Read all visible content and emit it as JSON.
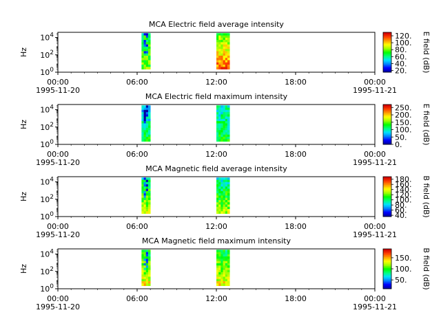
{
  "chart_data": [
    {
      "type": "heatmap",
      "title": "MCA  Electric field average intensity",
      "ylabel": "Hz",
      "y_scale": "log",
      "y_ticks": [
        {
          "base": "10",
          "exp": "0"
        },
        {
          "base": "10",
          "exp": "2"
        },
        {
          "base": "10",
          "exp": "4"
        }
      ],
      "x_ticks": [
        {
          "time": "00:00",
          "date": "1995-11-20"
        },
        {
          "time": "06:00",
          "date": ""
        },
        {
          "time": "12:00",
          "date": ""
        },
        {
          "time": "18:00",
          "date": ""
        },
        {
          "time": "00:00",
          "date": "1995-11-21"
        }
      ],
      "x_range": [
        "1995-11-20T00:00",
        "1995-11-21T00:00"
      ],
      "data_intervals": [
        [
          "1995-11-20T06:20",
          "1995-11-20T07:00"
        ],
        [
          "1995-11-20T12:00",
          "1995-11-20T13:00"
        ]
      ],
      "colorbar": {
        "label": "E field (dB)",
        "ticks": [
          "20.",
          "40.",
          "60.",
          "80.",
          "100.",
          "120."
        ],
        "range": [
          15,
          130
        ]
      }
    },
    {
      "type": "heatmap",
      "title": "MCA  Electric field maximum intensity",
      "ylabel": "Hz",
      "y_scale": "log",
      "y_ticks": [
        {
          "base": "10",
          "exp": "0"
        },
        {
          "base": "10",
          "exp": "2"
        },
        {
          "base": "10",
          "exp": "4"
        }
      ],
      "x_ticks": [
        {
          "time": "00:00",
          "date": "1995-11-20"
        },
        {
          "time": "06:00",
          "date": ""
        },
        {
          "time": "12:00",
          "date": ""
        },
        {
          "time": "18:00",
          "date": ""
        },
        {
          "time": "00:00",
          "date": "1995-11-21"
        }
      ],
      "x_range": [
        "1995-11-20T00:00",
        "1995-11-21T00:00"
      ],
      "data_intervals": [
        [
          "1995-11-20T06:20",
          "1995-11-20T07:00"
        ],
        [
          "1995-11-20T12:00",
          "1995-11-20T13:00"
        ]
      ],
      "colorbar": {
        "label": "E field (dB)",
        "ticks": [
          "0.",
          "50.",
          "100.",
          "150.",
          "200.",
          "250."
        ],
        "range": [
          0,
          270
        ]
      }
    },
    {
      "type": "heatmap",
      "title": "MCA  Magnetic field average intensity",
      "ylabel": "Hz",
      "y_scale": "log",
      "y_ticks": [
        {
          "base": "10",
          "exp": "0"
        },
        {
          "base": "10",
          "exp": "2"
        },
        {
          "base": "10",
          "exp": "4"
        }
      ],
      "x_ticks": [
        {
          "time": "00:00",
          "date": "1995-11-20"
        },
        {
          "time": "06:00",
          "date": ""
        },
        {
          "time": "12:00",
          "date": ""
        },
        {
          "time": "18:00",
          "date": ""
        },
        {
          "time": "00:00",
          "date": "1995-11-21"
        }
      ],
      "x_range": [
        "1995-11-20T00:00",
        "1995-11-21T00:00"
      ],
      "data_intervals": [
        [
          "1995-11-20T06:20",
          "1995-11-20T07:00"
        ],
        [
          "1995-11-20T12:00",
          "1995-11-20T13:00"
        ]
      ],
      "colorbar": {
        "label": "B field (dB)",
        "ticks": [
          "40.",
          "60.",
          "80.",
          "100.",
          "120.",
          "140.",
          "160.",
          "180."
        ],
        "range": [
          35,
          190
        ]
      }
    },
    {
      "type": "heatmap",
      "title": "MCA  Magnetic field maximum intensity",
      "ylabel": "Hz",
      "y_scale": "log",
      "y_ticks": [
        {
          "base": "10",
          "exp": "0"
        },
        {
          "base": "10",
          "exp": "2"
        },
        {
          "base": "10",
          "exp": "4"
        }
      ],
      "x_ticks": [
        {
          "time": "00:00",
          "date": "1995-11-20"
        },
        {
          "time": "06:00",
          "date": ""
        },
        {
          "time": "12:00",
          "date": ""
        },
        {
          "time": "18:00",
          "date": ""
        },
        {
          "time": "00:00",
          "date": "1995-11-21"
        }
      ],
      "x_range": [
        "1995-11-20T00:00",
        "1995-11-21T00:00"
      ],
      "data_intervals": [
        [
          "1995-11-20T06:20",
          "1995-11-20T07:00"
        ],
        [
          "1995-11-20T12:00",
          "1995-11-20T13:00"
        ]
      ],
      "colorbar": {
        "label": "B field (dB)",
        "ticks": [
          "50.",
          "100.",
          "150."
        ],
        "range": [
          10,
          190
        ]
      }
    }
  ],
  "colormap": [
    "#0000a0",
    "#0000ff",
    "#0080ff",
    "#00e0ff",
    "#00ff80",
    "#00ff00",
    "#a0ff00",
    "#ffff00",
    "#ffa000",
    "#ff4000",
    "#d00000"
  ]
}
